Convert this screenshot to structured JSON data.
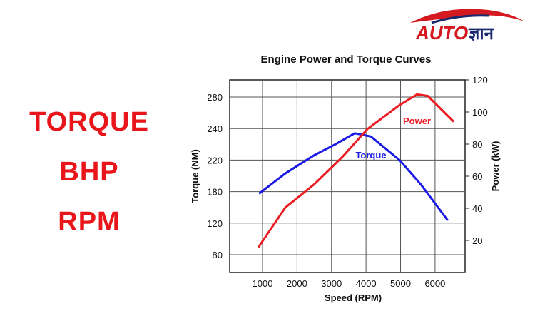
{
  "logo": {
    "text": "AUTO",
    "script": "ज्ञान"
  },
  "keywords": [
    "TORQUE",
    "BHP",
    "RPM"
  ],
  "chart_data": {
    "type": "line",
    "title": "Engine Power and Torque Curves",
    "x_label": "Speed (RPM)",
    "y_label": "Torque (NM)",
    "y2_label": "Power (kW)",
    "xlim": [
      50,
      6870
    ],
    "xticks": [
      1000,
      2000,
      3000,
      4000,
      5000,
      6000
    ],
    "ylim": [
      56,
      301
    ],
    "yticks": [
      80,
      120,
      180,
      220,
      240,
      280
    ],
    "y2lim": [
      0,
      120
    ],
    "y2ticks": [
      20,
      40,
      60,
      80,
      100,
      120
    ],
    "grid": true,
    "series": [
      {
        "name": "Torque",
        "color": "#1a1ae6",
        "x": [
          900,
          1660,
          2490,
          3110,
          3670,
          4140,
          4970,
          5590,
          6370
        ],
        "values": [
          176,
          203,
          223,
          230,
          237,
          235,
          220,
          189,
          125
        ]
      },
      {
        "name": "Power",
        "color": "#ec1c24",
        "axis": "y2",
        "x": [
          880,
          1660,
          2490,
          3310,
          4040,
          4970,
          5480,
          5790,
          6540
        ],
        "values": [
          15.7,
          40.4,
          54.8,
          71.9,
          89.4,
          104.3,
          111,
          110,
          94
        ]
      }
    ]
  }
}
